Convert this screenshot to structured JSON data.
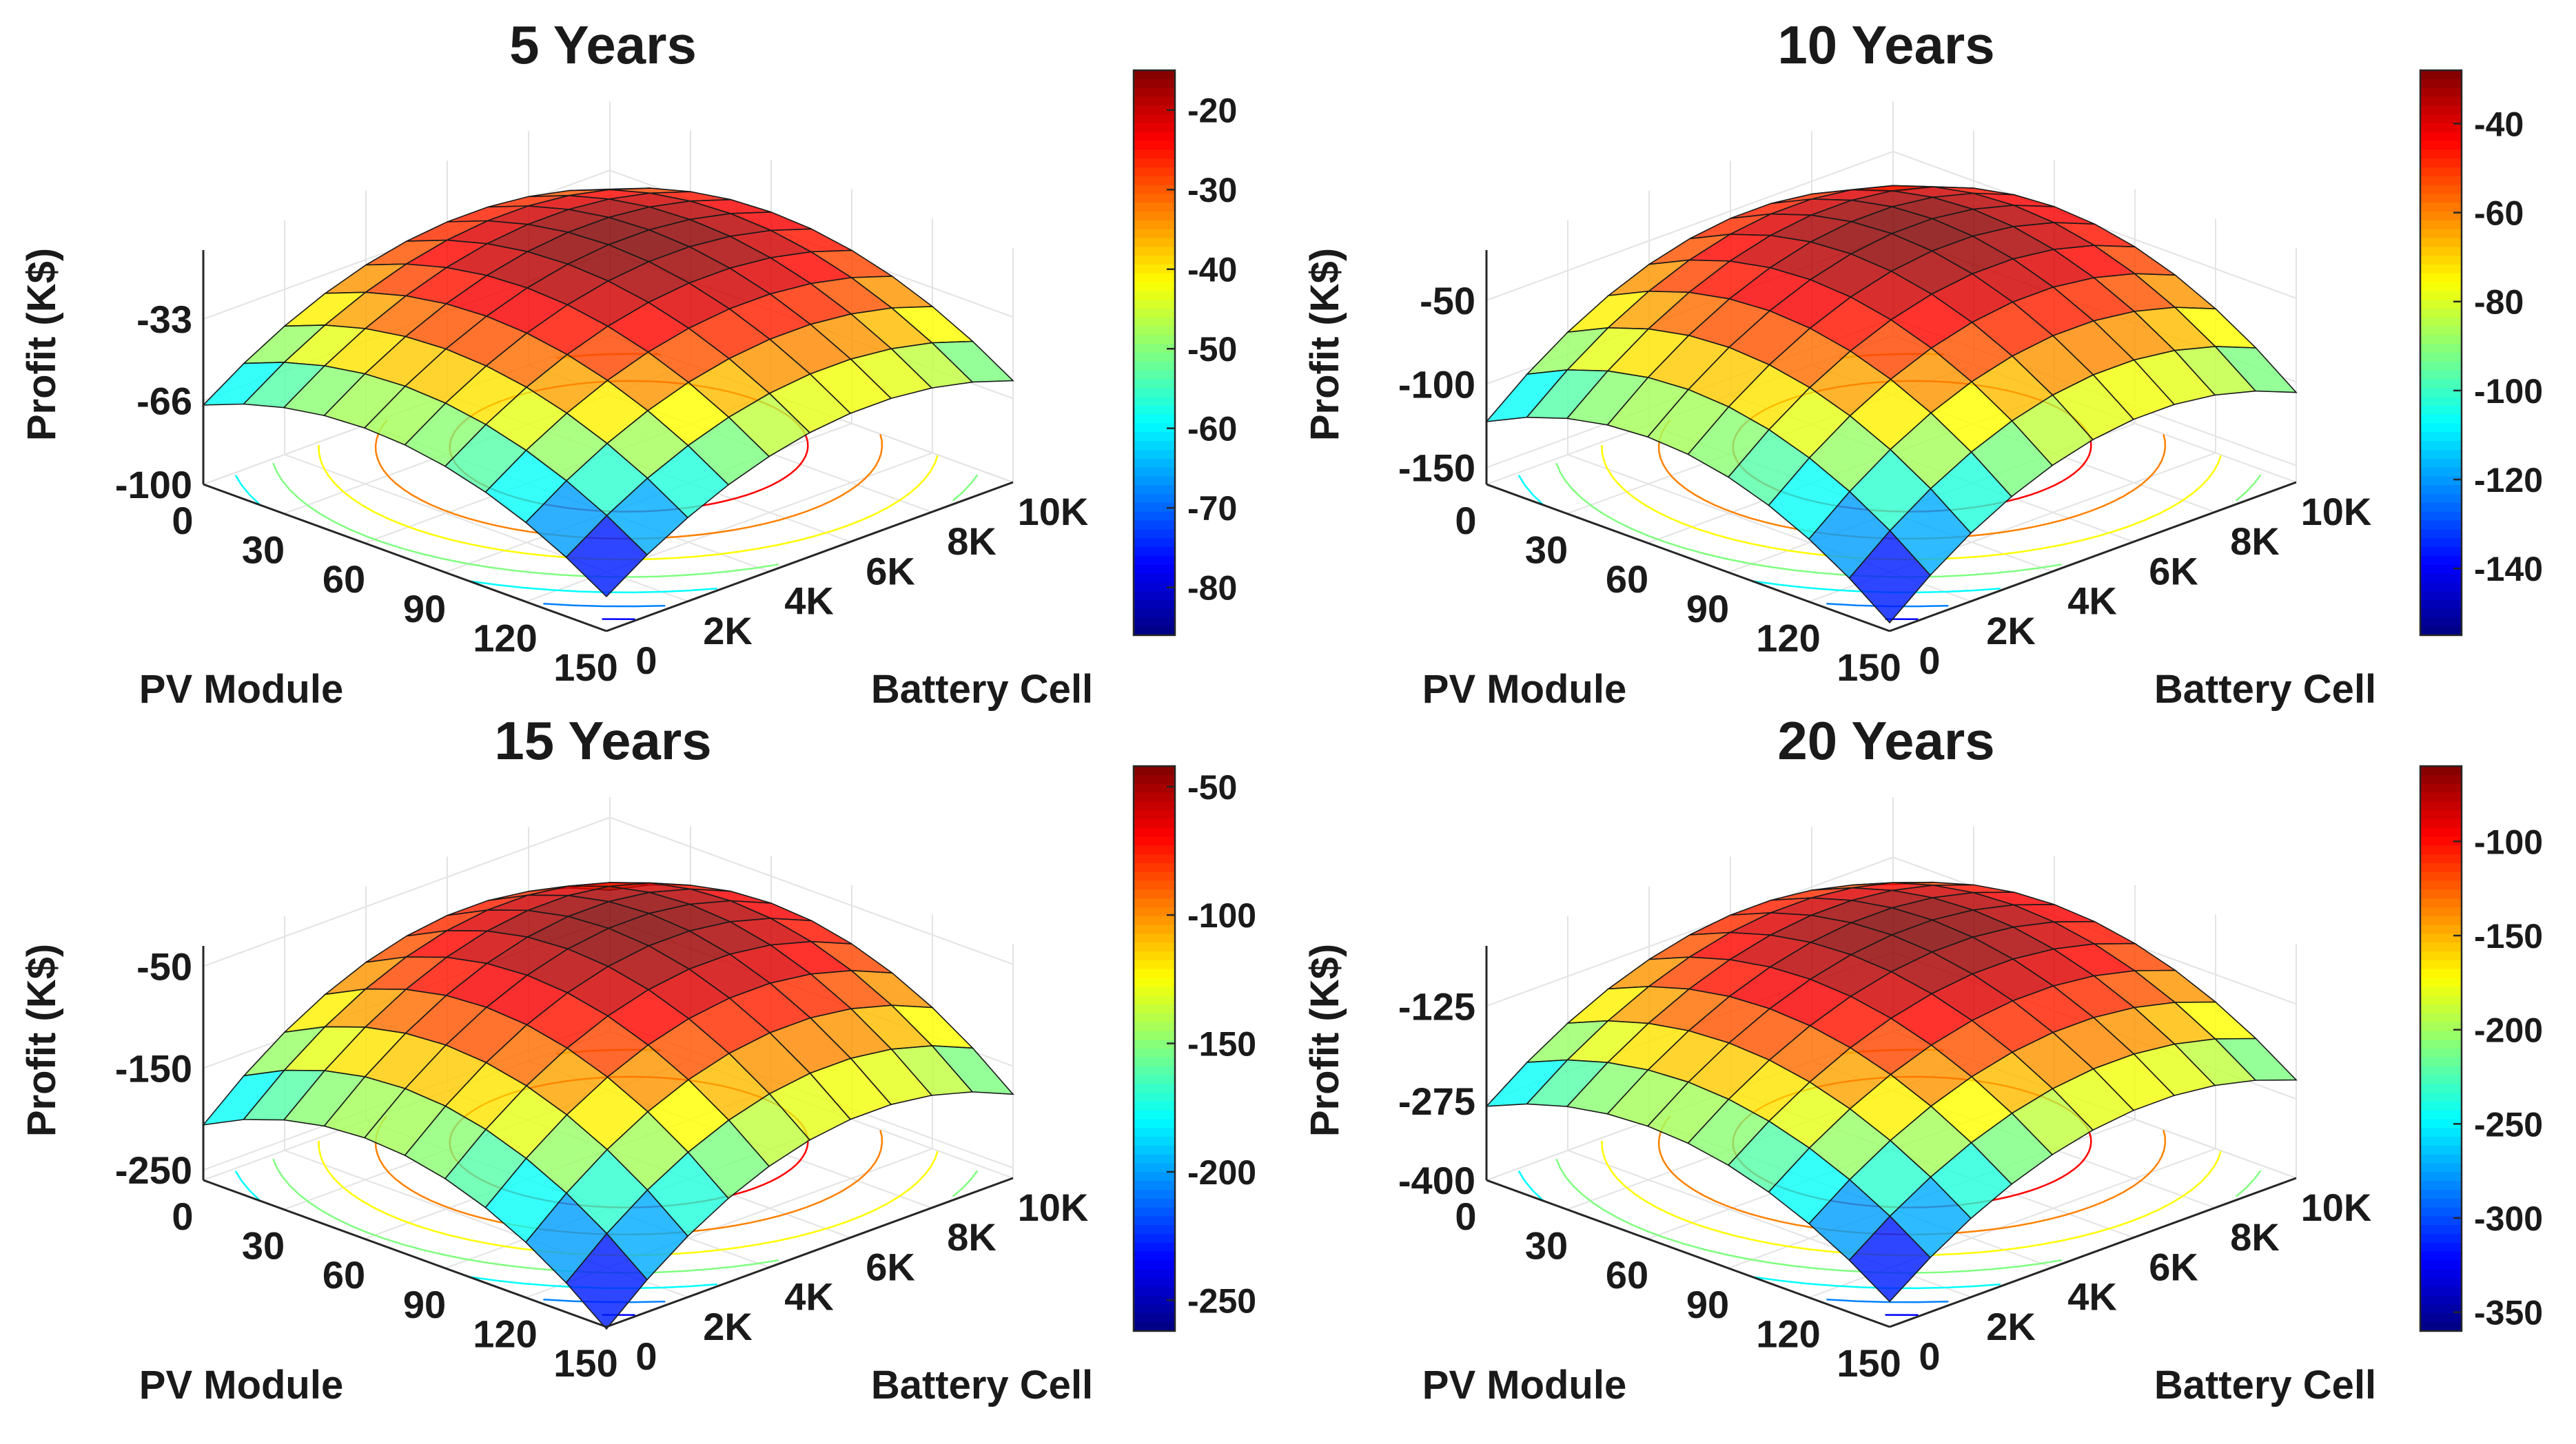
{
  "figure": {
    "xlabel": "PV Module",
    "ylabel": "Battery Cell",
    "zlabel": "Profit (K$)"
  },
  "chart_data": [
    {
      "type": "surface",
      "title": "5 Years",
      "xlabel": "PV Module",
      "ylabel": "Battery Cell",
      "zlabel": "Profit (K$)",
      "x_ticks": [
        "0",
        "30",
        "60",
        "90",
        "120",
        "150"
      ],
      "y_ticks": [
        "0",
        "2K",
        "4K",
        "6K",
        "8K",
        "10K"
      ],
      "z_ticks": [
        "-100",
        "-66",
        "-33"
      ],
      "z_tick_values": [
        -100,
        -66,
        -33
      ],
      "zlim": [
        -100,
        -5
      ],
      "xlim": [
        0,
        150
      ],
      "ylim": [
        0,
        10000
      ],
      "grid_pv": [
        0,
        15,
        30,
        45,
        60,
        75,
        90,
        105,
        120,
        135,
        150
      ],
      "grid_battery": [
        0,
        1000,
        2000,
        3000,
        4000,
        5000,
        6000,
        7000,
        8000,
        9000,
        10000
      ],
      "min_profit_at_origin": -86,
      "max_profit": -15,
      "max_profit_location": {
        "pv_module": 90,
        "battery_cell": 6500
      },
      "colorbar": {
        "min": -86,
        "max": -15,
        "ticks": [
          -80,
          -70,
          -60,
          -50,
          -40,
          -30,
          -20
        ]
      }
    },
    {
      "type": "surface",
      "title": "10 Years",
      "xlabel": "PV Module",
      "ylabel": "Battery Cell",
      "zlabel": "Profit (K$)",
      "x_ticks": [
        "0",
        "30",
        "60",
        "90",
        "120",
        "150"
      ],
      "y_ticks": [
        "0",
        "2K",
        "4K",
        "6K",
        "8K",
        "10K"
      ],
      "z_ticks": [
        "-150",
        "-100",
        "-50"
      ],
      "z_tick_values": [
        -150,
        -100,
        -50
      ],
      "zlim": [
        -160,
        -20
      ],
      "xlim": [
        0,
        150
      ],
      "ylim": [
        0,
        10000
      ],
      "grid_pv": [
        0,
        15,
        30,
        45,
        60,
        75,
        90,
        105,
        120,
        135,
        150
      ],
      "grid_battery": [
        0,
        1000,
        2000,
        3000,
        4000,
        5000,
        6000,
        7000,
        8000,
        9000,
        10000
      ],
      "min_profit_at_origin": -155,
      "max_profit": -28,
      "max_profit_location": {
        "pv_module": 90,
        "battery_cell": 6500
      },
      "colorbar": {
        "min": -155,
        "max": -28,
        "ticks": [
          -140,
          -120,
          -100,
          -80,
          -60,
          -40
        ]
      }
    },
    {
      "type": "surface",
      "title": "15 Years",
      "xlabel": "PV Module",
      "ylabel": "Battery Cell",
      "zlabel": "Profit (K$)",
      "x_ticks": [
        "0",
        "30",
        "60",
        "90",
        "120",
        "150"
      ],
      "y_ticks": [
        "0",
        "2K",
        "4K",
        "6K",
        "8K",
        "10K"
      ],
      "z_ticks": [
        "-250",
        "-150",
        "-50"
      ],
      "z_tick_values": [
        -250,
        -150,
        -50
      ],
      "zlim": [
        -260,
        -30
      ],
      "xlim": [
        0,
        150
      ],
      "ylim": [
        0,
        10000
      ],
      "grid_pv": [
        0,
        15,
        30,
        45,
        60,
        75,
        90,
        105,
        120,
        135,
        150
      ],
      "grid_battery": [
        0,
        1000,
        2000,
        3000,
        4000,
        5000,
        6000,
        7000,
        8000,
        9000,
        10000
      ],
      "min_profit_at_origin": -262,
      "max_profit": -42,
      "max_profit_location": {
        "pv_module": 90,
        "battery_cell": 6500
      },
      "colorbar": {
        "min": -262,
        "max": -42,
        "ticks": [
          -250,
          -200,
          -150,
          -100,
          -50
        ]
      }
    },
    {
      "type": "surface",
      "title": "20 Years",
      "xlabel": "PV Module",
      "ylabel": "Battery Cell",
      "zlabel": "Profit (K$)",
      "x_ticks": [
        "0",
        "30",
        "60",
        "90",
        "120",
        "150"
      ],
      "y_ticks": [
        "0",
        "2K",
        "4K",
        "6K",
        "8K",
        "10K"
      ],
      "z_ticks": [
        "-400",
        "-275",
        "-125"
      ],
      "z_tick_values": [
        -400,
        -275,
        -125
      ],
      "zlim": [
        -400,
        -30
      ],
      "xlim": [
        0,
        150
      ],
      "ylim": [
        0,
        10000
      ],
      "grid_pv": [
        0,
        15,
        30,
        45,
        60,
        75,
        90,
        105,
        120,
        135,
        150
      ],
      "grid_battery": [
        0,
        1000,
        2000,
        3000,
        4000,
        5000,
        6000,
        7000,
        8000,
        9000,
        10000
      ],
      "min_profit_at_origin": -360,
      "max_profit": -60,
      "max_profit_location": {
        "pv_module": 90,
        "battery_cell": 6500
      },
      "colorbar": {
        "min": -360,
        "max": -60,
        "ticks": [
          -350,
          -300,
          -250,
          -200,
          -150,
          -100
        ]
      }
    }
  ]
}
